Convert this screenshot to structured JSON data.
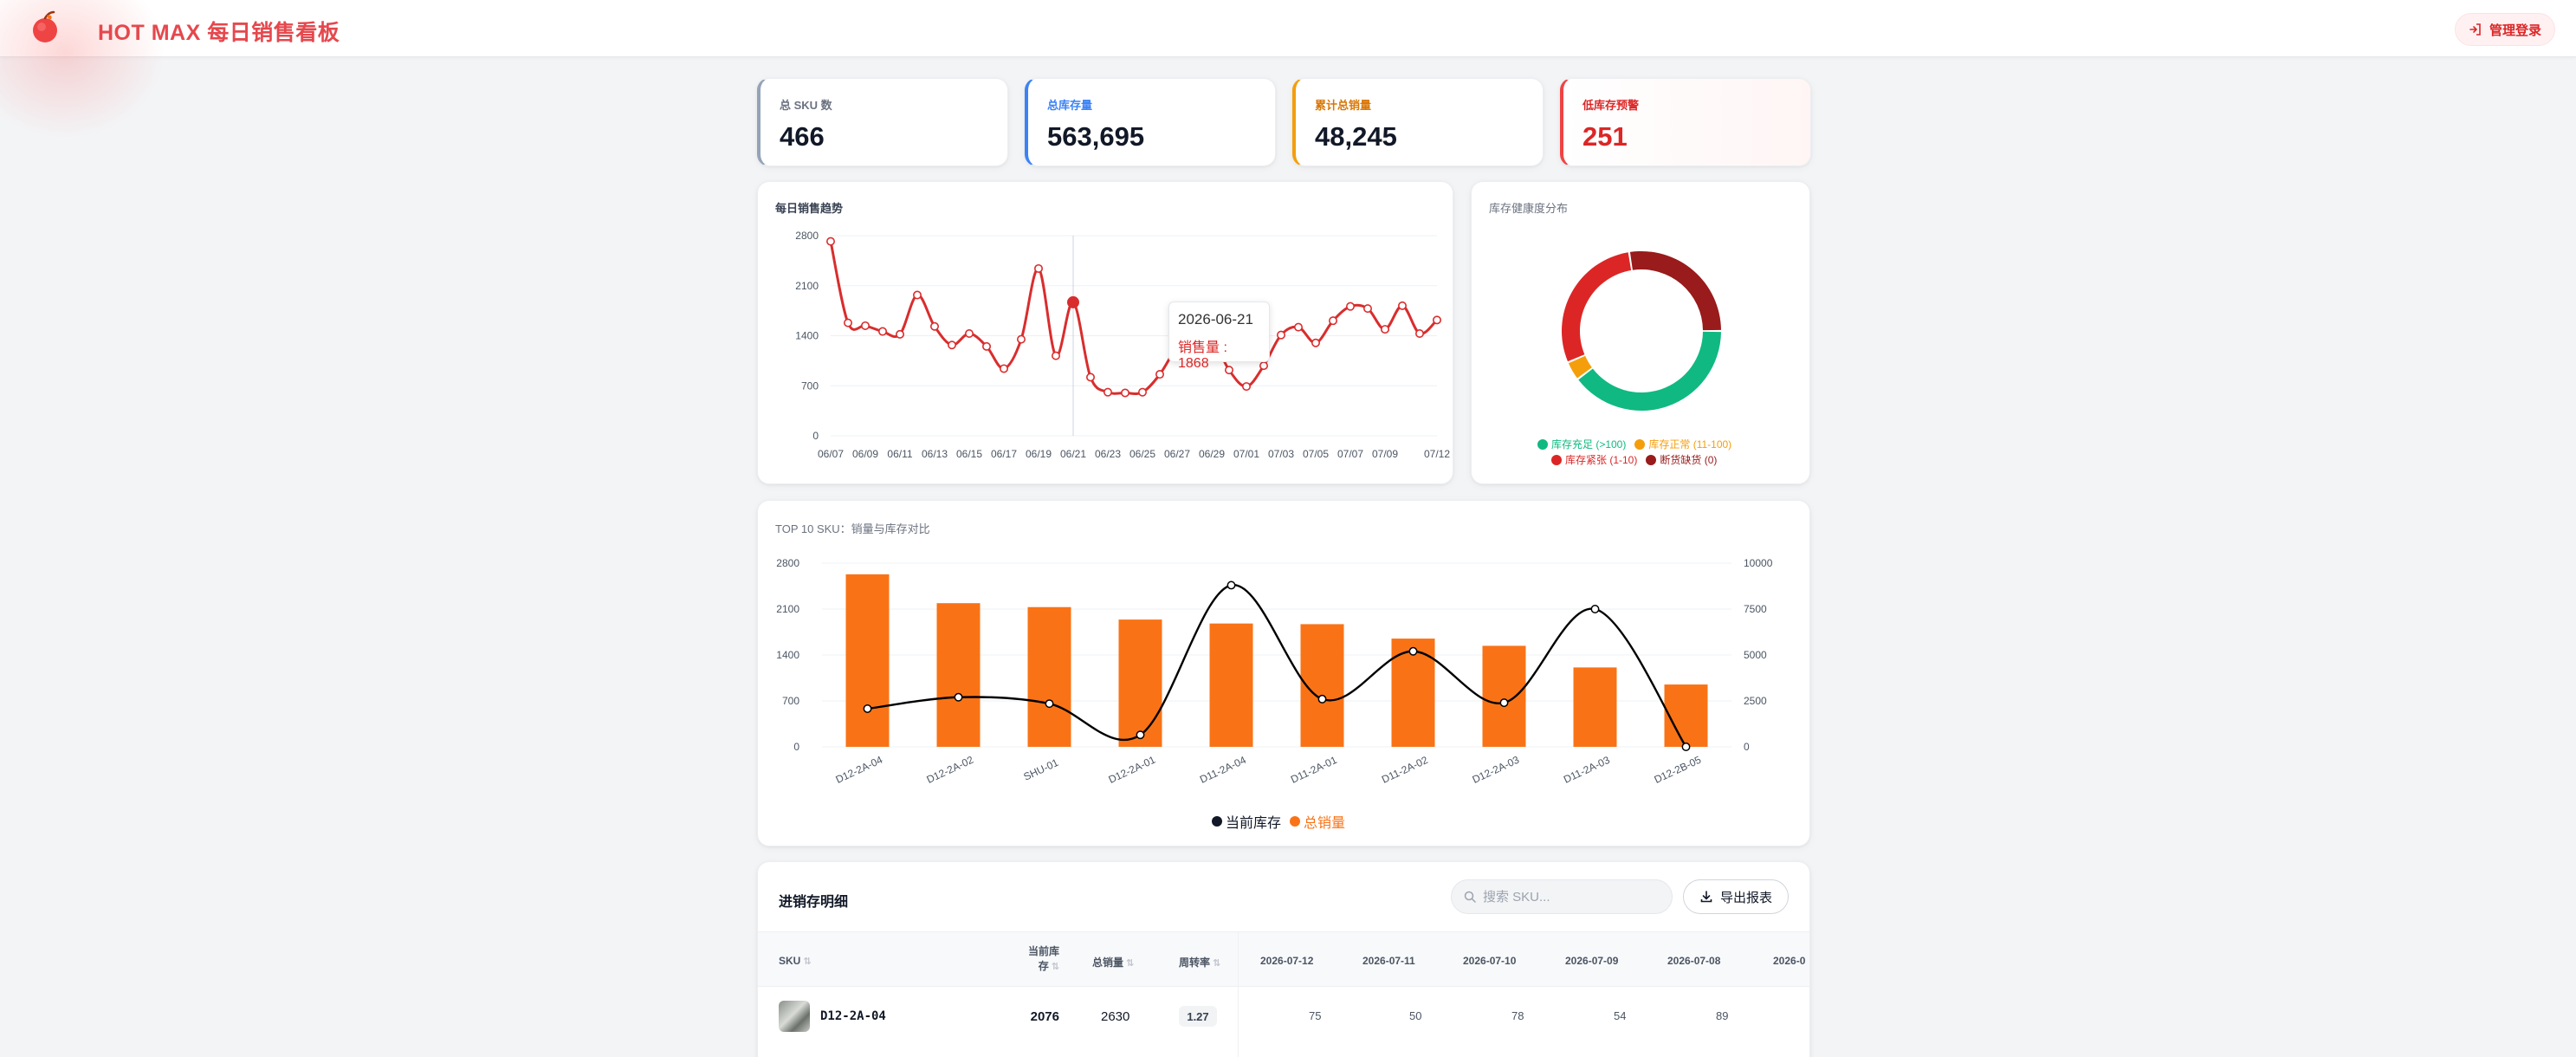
{
  "header": {
    "title": "HOT MAX 每日销售看板",
    "login_label": "管理登录"
  },
  "stats": [
    {
      "label": "总 SKU 数",
      "value": "466"
    },
    {
      "label": "总库存量",
      "value": "563,695"
    },
    {
      "label": "累计总销量",
      "value": "48,245"
    },
    {
      "label": "低库存预警",
      "value": "251"
    }
  ],
  "trend": {
    "title": "每日销售趋势",
    "tooltip": {
      "date": "2026-06-21",
      "label": "销售量",
      "value": "1868"
    }
  },
  "donut": {
    "title": "库存健康度分布"
  },
  "top10": {
    "title": "TOP 10 SKU：销量与库存对比"
  },
  "chart_data": [
    {
      "type": "line",
      "title": "每日销售趋势",
      "x": [
        "06/07",
        "06/08",
        "06/09",
        "06/10",
        "06/11",
        "06/12",
        "06/13",
        "06/14",
        "06/15",
        "06/16",
        "06/17",
        "06/18",
        "06/19",
        "06/20",
        "06/21",
        "06/22",
        "06/23",
        "06/24",
        "06/25",
        "06/26",
        "06/27",
        "06/28",
        "06/29",
        "06/30",
        "07/01",
        "07/02",
        "07/03",
        "07/04",
        "07/05",
        "07/06",
        "07/07",
        "07/08",
        "07/09",
        "07/10",
        "07/11",
        "07/12"
      ],
      "x_ticks": [
        "06/07",
        "06/09",
        "06/11",
        "06/13",
        "06/15",
        "06/17",
        "06/19",
        "06/21",
        "06/23",
        "06/25",
        "06/27",
        "06/29",
        "07/01",
        "07/03",
        "07/05",
        "07/07",
        "07/09",
        "07/12"
      ],
      "series": [
        {
          "values": [
            2720,
            1580,
            1540,
            1460,
            1420,
            1970,
            1530,
            1270,
            1430,
            1250,
            940,
            1350,
            2340,
            1120,
            1868,
            820,
            610,
            600,
            610,
            860,
            1250,
            1500,
            1380,
            920,
            690,
            980,
            1410,
            1520,
            1300,
            1610,
            1810,
            1780,
            1490,
            1820,
            1430,
            1620
          ]
        }
      ],
      "ylim": [
        0,
        2800
      ],
      "yticks": [
        0,
        700,
        1400,
        2100,
        2800
      ],
      "color": "#d92d2d",
      "highlight_index": 14
    },
    {
      "type": "pie",
      "title": "库存健康度分布",
      "labels": [
        "库存充足 (>100)",
        "库存正常 (11-100)",
        "库存紧张 (1-10)",
        "断货缺货 (0)"
      ],
      "values": [
        185,
        18,
        135,
        128
      ],
      "colors": [
        "#10b981",
        "#f59e0b",
        "#dc2626",
        "#991b1b"
      ],
      "donut": true
    },
    {
      "type": "bar",
      "title": "TOP 10 SKU：销量与库存对比",
      "categories": [
        "D12-2A-04",
        "D12-2A-02",
        "SHU-01",
        "D12-2A-01",
        "D11-2A-04",
        "D11-2A-01",
        "D11-2A-02",
        "D12-2A-03",
        "D11-2A-03",
        "D12-2B-05"
      ],
      "series": [
        {
          "name": "总销量",
          "type": "bar",
          "axis": "left",
          "color": "#f97316",
          "values": [
            2630,
            2190,
            2130,
            1940,
            1880,
            1870,
            1650,
            1540,
            1210,
            950
          ]
        },
        {
          "name": "当前库存",
          "type": "line",
          "axis": "right",
          "color": "#000000",
          "values": [
            2076,
            2700,
            2350,
            650,
            8800,
            2600,
            5200,
            2400,
            7500,
            0
          ]
        }
      ],
      "ylim": [
        0,
        2800
      ],
      "yticks": [
        0,
        700,
        1400,
        2100,
        2800
      ],
      "y2lim": [
        0,
        10000
      ],
      "y2ticks": [
        0,
        2500,
        5000,
        7500,
        10000
      ],
      "legend": "bottom"
    }
  ],
  "table": {
    "title": "进销存明细",
    "search_placeholder": "搜索 SKU...",
    "export_label": "导出报表",
    "columns": [
      "SKU",
      "当前库",
      "存",
      "总销量",
      "周转率",
      "2026-07-12",
      "2026-07-11",
      "2026-07-10",
      "2026-07-09",
      "2026-07-08",
      "2026-0"
    ],
    "rows": [
      {
        "sku": "D12-2A-04",
        "stock": "2076",
        "sales": "2630",
        "turnover": "1.27",
        "d1": "75",
        "d2": "50",
        "d3": "78",
        "d4": "54",
        "d5": "89"
      }
    ]
  }
}
